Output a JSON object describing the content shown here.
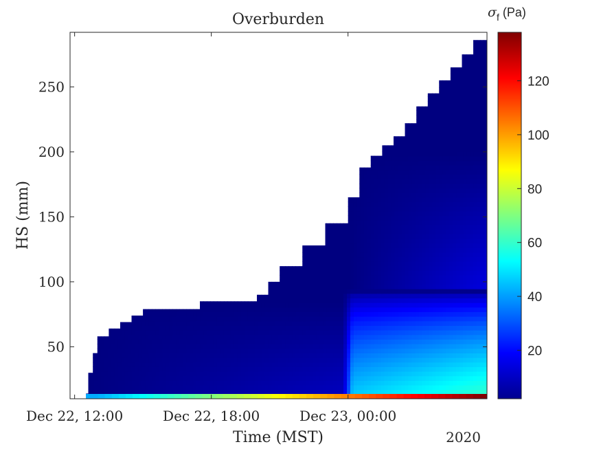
{
  "chart_data": {
    "type": "heatmap",
    "title": "Overburden",
    "xlabel": "Time (MST)",
    "ylabel": "HS (mm)",
    "x_year_label": "2020",
    "x_ticks": [
      {
        "label": "Dec 22, 12:00",
        "hours": 12
      },
      {
        "label": "Dec 22, 18:00",
        "hours": 18
      },
      {
        "label": "Dec 23, 00:00",
        "hours": 24
      }
    ],
    "xlim_hours": [
      11.8,
      30.1
    ],
    "ylim": [
      10,
      292
    ],
    "y_ticks": [
      50,
      100,
      150,
      200,
      250
    ],
    "colorbar": {
      "label_symbol": "σ",
      "label_sub": "f",
      "label_unit": " (Pa)",
      "range": [
        2,
        138
      ],
      "ticks": [
        20,
        40,
        60,
        80,
        100,
        120
      ],
      "colormap": "jet"
    },
    "snow_surface": {
      "hours": [
        12.5,
        12.6,
        12.8,
        13.0,
        13.5,
        14.0,
        14.5,
        15.0,
        16.0,
        17.0,
        17.5,
        18.0,
        19.5,
        20.0,
        20.5,
        21.0,
        22.0,
        23.0,
        24.0,
        24.5,
        25.0,
        25.5,
        26.0,
        26.5,
        27.0,
        27.5,
        28.0,
        28.5,
        29.0,
        29.5,
        30.1
      ],
      "height": [
        14,
        30,
        45,
        58,
        64,
        69,
        74,
        79,
        79,
        79,
        85,
        85,
        85,
        90,
        100,
        112,
        128,
        145,
        165,
        188,
        197,
        205,
        212,
        222,
        235,
        245,
        255,
        265,
        275,
        286,
        290
      ]
    }
  }
}
